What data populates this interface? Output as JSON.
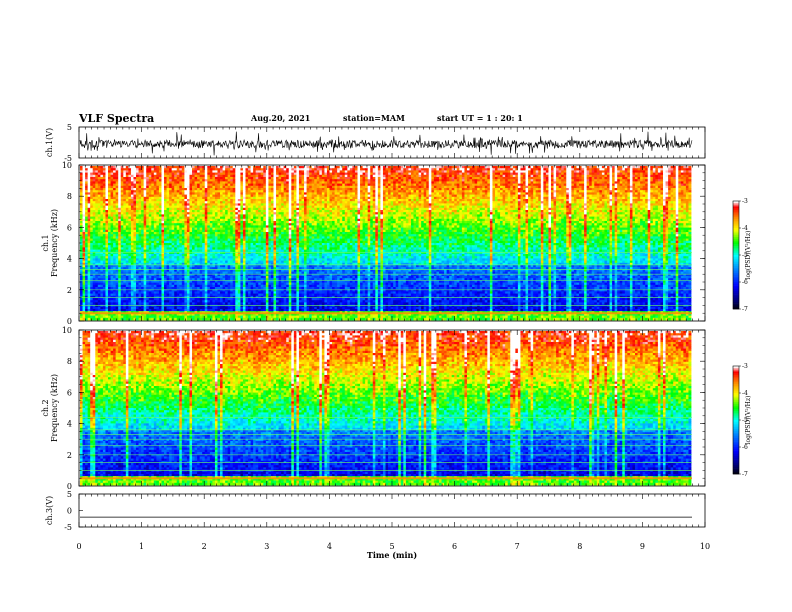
{
  "header": {
    "title": "VLF Spectra",
    "date": "Aug.20, 2021",
    "station": "station=MAM",
    "start": "start  UT =   1 : 20: 1"
  },
  "chart_data": [
    {
      "type": "line",
      "ylabel": "ch.1(V)",
      "ylim": [
        -5,
        5
      ],
      "yticks": [
        "5",
        "-5"
      ],
      "description_values": "noisy waveform, mean ~ -0.5 V, amplitude ~ ±2 V"
    },
    {
      "type": "heatmap",
      "ylabel_line1": "ch.1",
      "ylabel_line2": "Frequency (kHz)",
      "ylim": [
        0,
        10
      ],
      "yticks": [
        "0",
        "2",
        "4",
        "6",
        "8",
        "10"
      ],
      "xlim": [
        0,
        9.8
      ],
      "colorbar": {
        "label": "log(PSD)(V²/Hz)",
        "range": [
          -7,
          -3
        ],
        "ticks": [
          "-3",
          "-4",
          "-5",
          "-6",
          "-7"
        ],
        "colors": [
          "#7f0000",
          "#ff0000",
          "#ff8c00",
          "#ffff00",
          "#00ff00",
          "#00ffff",
          "#0080ff",
          "#0000ff",
          "#000080",
          "#000000"
        ]
      }
    },
    {
      "type": "heatmap",
      "ylabel_line1": "ch.2",
      "ylabel_line2": "Frequency (kHz)",
      "ylim": [
        0,
        10
      ],
      "yticks": [
        "0",
        "2",
        "4",
        "6",
        "8",
        "10"
      ],
      "xlim": [
        0,
        9.8
      ],
      "colorbar": {
        "label": "log(PSD)(V²/Hz)",
        "range": [
          -7,
          -3
        ],
        "ticks": [
          "-3",
          "-4",
          "-5",
          "-6",
          "-7"
        ]
      }
    },
    {
      "type": "line",
      "ylabel": "ch.3(V)",
      "ylim": [
        -5,
        5
      ],
      "yticks": [
        "5",
        "0",
        "-5"
      ],
      "values_note": "flat line at approximately -2 V"
    }
  ],
  "xaxis": {
    "label": "Time (min)",
    "range": [
      0,
      10
    ],
    "ticks": [
      "0",
      "1",
      "2",
      "3",
      "4",
      "5",
      "6",
      "7",
      "8",
      "9",
      "10"
    ]
  }
}
